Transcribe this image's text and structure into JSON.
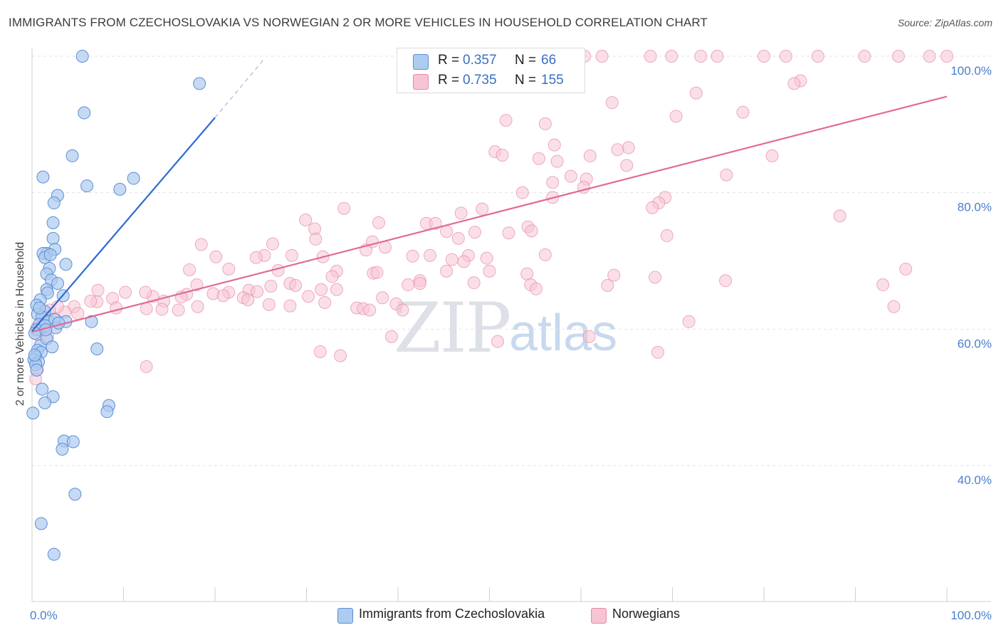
{
  "title": "IMMIGRANTS FROM CZECHOSLOVAKIA VS NORWEGIAN 2 OR MORE VEHICLES IN HOUSEHOLD CORRELATION CHART",
  "source": "Source: ZipAtlas.com",
  "watermark": {
    "zip": "ZIP",
    "atlas": "atlas"
  },
  "legend": {
    "rows": [
      {
        "r_label": "R =",
        "r_value": "0.357",
        "n_label": "N =",
        "n_value": "66",
        "color": "#aecbf0"
      },
      {
        "r_label": "R =",
        "r_value": "0.735",
        "n_label": "N =",
        "n_value": "155",
        "color": "#f7c4d3"
      }
    ]
  },
  "bottom_legend": [
    {
      "label": "Immigrants from Czechoslovakia",
      "color": "#aecbf0"
    },
    {
      "label": "Norwegians",
      "color": "#f7c4d3"
    }
  ],
  "colors": {
    "blue_fill": "#aecbf0",
    "blue_stroke": "#5a8fd6",
    "blue_line": "#2f6ad0",
    "pink_fill": "#f7c4d3",
    "pink_stroke": "#e58aa8",
    "pink_line": "#e06b96",
    "grid": "#e3e3e3",
    "tick_text": "#4a7ecb"
  },
  "chart_data": {
    "type": "scatter",
    "title": "IMMIGRANTS FROM CZECHOSLOVAKIA VS NORWEGIAN 2 OR MORE VEHICLES IN HOUSEHOLD CORRELATION CHART",
    "xlabel": "",
    "ylabel": "2 or more Vehicles in Household",
    "xlim": [
      0,
      100
    ],
    "ylim": [
      20,
      102
    ],
    "x_tick_labels": [
      "0.0%",
      "100.0%"
    ],
    "y_tick_labels": [
      "40.0%",
      "60.0%",
      "80.0%",
      "100.0%"
    ],
    "y_ticks": [
      40,
      60,
      80,
      100
    ],
    "grid": true,
    "legend_position": "top-center",
    "series": [
      {
        "name": "Immigrants from Czechoslovakia",
        "color": "#aecbf0",
        "trend": {
          "x": [
            0.0,
            20.0
          ],
          "y": [
            59.7,
            91.0
          ],
          "dashed_extension_to": [
            25.5,
            99.8
          ]
        },
        "points": [
          [
            5.5,
            100.0
          ],
          [
            18.3,
            96.0
          ],
          [
            5.7,
            91.7
          ],
          [
            4.4,
            85.4
          ],
          [
            1.2,
            82.3
          ],
          [
            11.1,
            82.1
          ],
          [
            6.0,
            81.0
          ],
          [
            9.6,
            80.5
          ],
          [
            2.8,
            79.6
          ],
          [
            2.4,
            78.5
          ],
          [
            2.3,
            75.6
          ],
          [
            2.3,
            73.3
          ],
          [
            2.5,
            71.7
          ],
          [
            1.6,
            71.1
          ],
          [
            1.2,
            71.1
          ],
          [
            1.4,
            70.5
          ],
          [
            2.0,
            70.9
          ],
          [
            3.7,
            69.5
          ],
          [
            1.9,
            68.9
          ],
          [
            1.6,
            68.1
          ],
          [
            2.1,
            67.2
          ],
          [
            2.8,
            66.7
          ],
          [
            1.6,
            65.8
          ],
          [
            1.7,
            65.3
          ],
          [
            3.4,
            64.9
          ],
          [
            0.9,
            64.3
          ],
          [
            0.5,
            63.5
          ],
          [
            1.4,
            62.6
          ],
          [
            0.6,
            62.2
          ],
          [
            1.1,
            61.8
          ],
          [
            1.8,
            61.1
          ],
          [
            2.5,
            61.4
          ],
          [
            3.7,
            61.1
          ],
          [
            6.5,
            61.1
          ],
          [
            0.8,
            60.7
          ],
          [
            1.4,
            60.5
          ],
          [
            2.6,
            60.2
          ],
          [
            0.5,
            59.9
          ],
          [
            0.3,
            59.4
          ],
          [
            0.9,
            57.6
          ],
          [
            1.6,
            58.6
          ],
          [
            2.2,
            57.4
          ],
          [
            0.6,
            56.9
          ],
          [
            1.0,
            56.6
          ],
          [
            7.1,
            57.1
          ],
          [
            0.4,
            55.9
          ],
          [
            0.2,
            55.5
          ],
          [
            0.7,
            55.2
          ],
          [
            0.4,
            54.8
          ],
          [
            1.1,
            51.2
          ],
          [
            2.3,
            50.1
          ],
          [
            1.4,
            49.2
          ],
          [
            8.4,
            48.8
          ],
          [
            8.2,
            47.9
          ],
          [
            0.1,
            47.7
          ],
          [
            3.5,
            43.6
          ],
          [
            4.5,
            43.5
          ],
          [
            3.3,
            42.4
          ],
          [
            4.7,
            35.8
          ],
          [
            1.0,
            31.5
          ],
          [
            2.4,
            27.0
          ],
          [
            0.5,
            54.0
          ],
          [
            0.3,
            56.2
          ],
          [
            0.8,
            63.1
          ],
          [
            2.9,
            60.9
          ],
          [
            1.5,
            59.9
          ]
        ]
      },
      {
        "name": "Norwegians",
        "color": "#f7c4d3",
        "trend": {
          "x": [
            0.0,
            100.0
          ],
          "y": [
            59.6,
            94.1
          ]
        },
        "points": [
          [
            60.4,
            100.0
          ],
          [
            62.3,
            100.0
          ],
          [
            67.6,
            100.0
          ],
          [
            69.9,
            100.0
          ],
          [
            73.1,
            100.0
          ],
          [
            74.9,
            100.0
          ],
          [
            80.0,
            100.0
          ],
          [
            82.4,
            100.0
          ],
          [
            85.9,
            100.0
          ],
          [
            91.0,
            100.0
          ],
          [
            94.7,
            100.0
          ],
          [
            98.1,
            100.0
          ],
          [
            100.0,
            100.0
          ],
          [
            84.0,
            96.4
          ],
          [
            83.3,
            96.0
          ],
          [
            72.6,
            94.6
          ],
          [
            63.4,
            93.2
          ],
          [
            77.7,
            91.8
          ],
          [
            70.4,
            91.2
          ],
          [
            51.8,
            90.6
          ],
          [
            56.1,
            90.1
          ],
          [
            57.1,
            87.0
          ],
          [
            65.2,
            86.6
          ],
          [
            64.0,
            86.3
          ],
          [
            50.6,
            86.0
          ],
          [
            51.4,
            85.5
          ],
          [
            55.4,
            85.0
          ],
          [
            57.4,
            84.6
          ],
          [
            61.0,
            85.4
          ],
          [
            80.9,
            85.4
          ],
          [
            65.0,
            84.0
          ],
          [
            58.9,
            82.4
          ],
          [
            75.9,
            82.6
          ],
          [
            56.9,
            81.5
          ],
          [
            60.6,
            82.0
          ],
          [
            60.3,
            80.8
          ],
          [
            53.6,
            80.0
          ],
          [
            56.9,
            79.3
          ],
          [
            69.2,
            79.3
          ],
          [
            68.5,
            78.5
          ],
          [
            67.8,
            77.8
          ],
          [
            34.1,
            77.7
          ],
          [
            49.2,
            77.6
          ],
          [
            46.9,
            77.0
          ],
          [
            88.3,
            76.6
          ],
          [
            29.9,
            76.0
          ],
          [
            37.9,
            75.6
          ],
          [
            43.1,
            75.5
          ],
          [
            44.1,
            75.5
          ],
          [
            30.9,
            74.7
          ],
          [
            48.4,
            74.2
          ],
          [
            54.2,
            75.0
          ],
          [
            45.3,
            74.3
          ],
          [
            54.6,
            74.4
          ],
          [
            52.1,
            74.1
          ],
          [
            31.0,
            73.2
          ],
          [
            46.6,
            73.3
          ],
          [
            69.4,
            73.7
          ],
          [
            37.2,
            72.8
          ],
          [
            18.5,
            72.4
          ],
          [
            26.3,
            72.5
          ],
          [
            38.6,
            72.0
          ],
          [
            36.5,
            71.6
          ],
          [
            31.8,
            70.6
          ],
          [
            28.4,
            70.8
          ],
          [
            25.4,
            70.8
          ],
          [
            43.5,
            70.8
          ],
          [
            47.7,
            70.8
          ],
          [
            41.6,
            70.7
          ],
          [
            47.2,
            69.9
          ],
          [
            56.1,
            70.9
          ],
          [
            20.1,
            70.6
          ],
          [
            24.5,
            70.5
          ],
          [
            45.9,
            70.2
          ],
          [
            49.7,
            70.4
          ],
          [
            21.5,
            68.8
          ],
          [
            17.2,
            68.7
          ],
          [
            26.9,
            68.6
          ],
          [
            33.3,
            68.5
          ],
          [
            37.3,
            68.2
          ],
          [
            37.7,
            68.3
          ],
          [
            45.3,
            68.5
          ],
          [
            54.1,
            68.1
          ],
          [
            63.6,
            67.9
          ],
          [
            50.0,
            68.5
          ],
          [
            32.8,
            67.7
          ],
          [
            42.4,
            67.1
          ],
          [
            42.4,
            66.7
          ],
          [
            75.8,
            67.1
          ],
          [
            48.3,
            66.8
          ],
          [
            54.5,
            66.5
          ],
          [
            55.1,
            65.9
          ],
          [
            62.9,
            66.4
          ],
          [
            28.2,
            66.7
          ],
          [
            41.1,
            66.5
          ],
          [
            68.1,
            67.6
          ],
          [
            18.0,
            66.5
          ],
          [
            23.7,
            65.7
          ],
          [
            24.6,
            65.5
          ],
          [
            19.8,
            65.2
          ],
          [
            21.5,
            65.4
          ],
          [
            26.1,
            66.3
          ],
          [
            28.8,
            66.4
          ],
          [
            31.6,
            65.8
          ],
          [
            33.3,
            65.8
          ],
          [
            30.2,
            64.8
          ],
          [
            38.3,
            64.6
          ],
          [
            16.9,
            65.1
          ],
          [
            13.2,
            64.8
          ],
          [
            12.4,
            65.4
          ],
          [
            10.2,
            65.4
          ],
          [
            7.2,
            65.7
          ],
          [
            8.8,
            64.5
          ],
          [
            14.4,
            64.1
          ],
          [
            16.3,
            64.7
          ],
          [
            20.9,
            64.9
          ],
          [
            23.1,
            64.6
          ],
          [
            25.9,
            63.6
          ],
          [
            28.2,
            63.4
          ],
          [
            32.0,
            63.9
          ],
          [
            35.5,
            63.1
          ],
          [
            36.2,
            63.0
          ],
          [
            39.8,
            63.7
          ],
          [
            40.5,
            62.8
          ],
          [
            36.9,
            62.8
          ],
          [
            9.2,
            63.1
          ],
          [
            12.5,
            63.0
          ],
          [
            14.2,
            62.9
          ],
          [
            16.0,
            62.8
          ],
          [
            18.1,
            63.3
          ],
          [
            23.6,
            64.3
          ],
          [
            7.1,
            64.0
          ],
          [
            6.4,
            64.1
          ],
          [
            4.6,
            63.3
          ],
          [
            5.0,
            62.3
          ],
          [
            3.6,
            62.5
          ],
          [
            2.8,
            63.3
          ],
          [
            1.9,
            62.8
          ],
          [
            1.4,
            61.8
          ],
          [
            2.4,
            61.5
          ],
          [
            1.1,
            60.9
          ],
          [
            0.5,
            60.1
          ],
          [
            0.6,
            59.2
          ],
          [
            1.7,
            58.9
          ],
          [
            39.3,
            58.9
          ],
          [
            60.9,
            58.9
          ],
          [
            68.4,
            56.6
          ],
          [
            31.5,
            56.7
          ],
          [
            33.7,
            56.1
          ],
          [
            12.5,
            54.5
          ],
          [
            0.6,
            54.1
          ],
          [
            0.4,
            52.7
          ],
          [
            71.8,
            61.1
          ],
          [
            95.5,
            68.8
          ],
          [
            93.0,
            66.5
          ],
          [
            94.2,
            63.3
          ],
          [
            50.9,
            58.2
          ]
        ]
      }
    ]
  }
}
